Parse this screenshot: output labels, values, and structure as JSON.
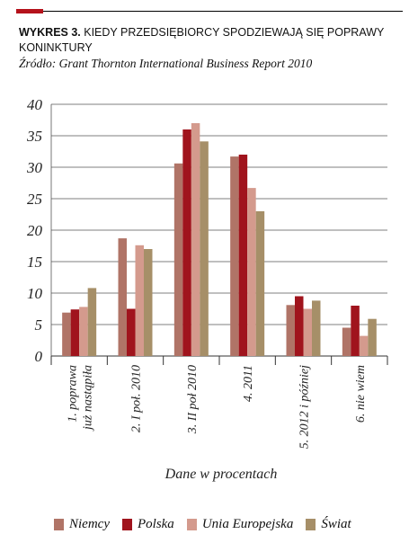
{
  "header": {
    "title_lead": "WYKRES 3.",
    "title_rest": " KIEDY PRZEDSIĘBIORCY SPODZIEWAJĄ SIĘ POPRAWY KONINKTURY",
    "source": "Źródło:  Grant Thornton International Business Report 2010"
  },
  "colors": {
    "accent": "#b5121b",
    "Niemcy": "#b07467",
    "Polska": "#a0141d",
    "Unia Europejska": "#d49a8d",
    "Świat": "#a68f68"
  },
  "chart_data": {
    "type": "bar",
    "title": "",
    "xlabel": "Dane w procentach",
    "ylabel": "",
    "ylim": [
      0,
      40
    ],
    "yticks": [
      0,
      5,
      10,
      15,
      20,
      25,
      30,
      35,
      40
    ],
    "grid": true,
    "legend_position": "bottom",
    "categories": [
      [
        "1. poprawa",
        "już nastąpiła"
      ],
      [
        "2. I poł. 2010"
      ],
      [
        "3. II poł 2010"
      ],
      [
        "4. 2011"
      ],
      [
        "5. 2012 i później"
      ],
      [
        "6. nie wiem"
      ]
    ],
    "series": [
      {
        "name": "Niemcy",
        "values": [
          6.9,
          18.7,
          30.6,
          31.7,
          8.1,
          4.5
        ]
      },
      {
        "name": "Polska",
        "values": [
          7.4,
          7.5,
          36.0,
          32.0,
          9.5,
          8.0
        ]
      },
      {
        "name": "Unia Europejska",
        "values": [
          7.8,
          17.6,
          37.0,
          26.7,
          7.5,
          3.2
        ]
      },
      {
        "name": "Świat",
        "values": [
          10.8,
          17.0,
          34.1,
          23.0,
          8.8,
          5.9
        ]
      }
    ]
  }
}
